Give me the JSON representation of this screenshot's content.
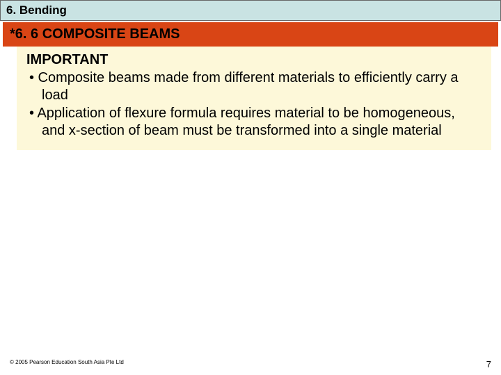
{
  "chapter": {
    "title": "6. Bending"
  },
  "section": {
    "title": "*6. 6 COMPOSITE BEAMS"
  },
  "content": {
    "important_label": "IMPORTANT",
    "bullets": [
      "•  Composite beams made from different materials to efficiently carry a load",
      "•  Application of flexure formula requires material to be homogeneous, and x-section of beam must be transformed into a single material"
    ]
  },
  "footer": {
    "copyright": "© 2005 Pearson Education South Asia Pte Ltd",
    "page": "7"
  },
  "colors": {
    "chapter_bg": "#c9e3e3",
    "section_bg": "#d94515",
    "content_bg": "#fdf8d9"
  }
}
